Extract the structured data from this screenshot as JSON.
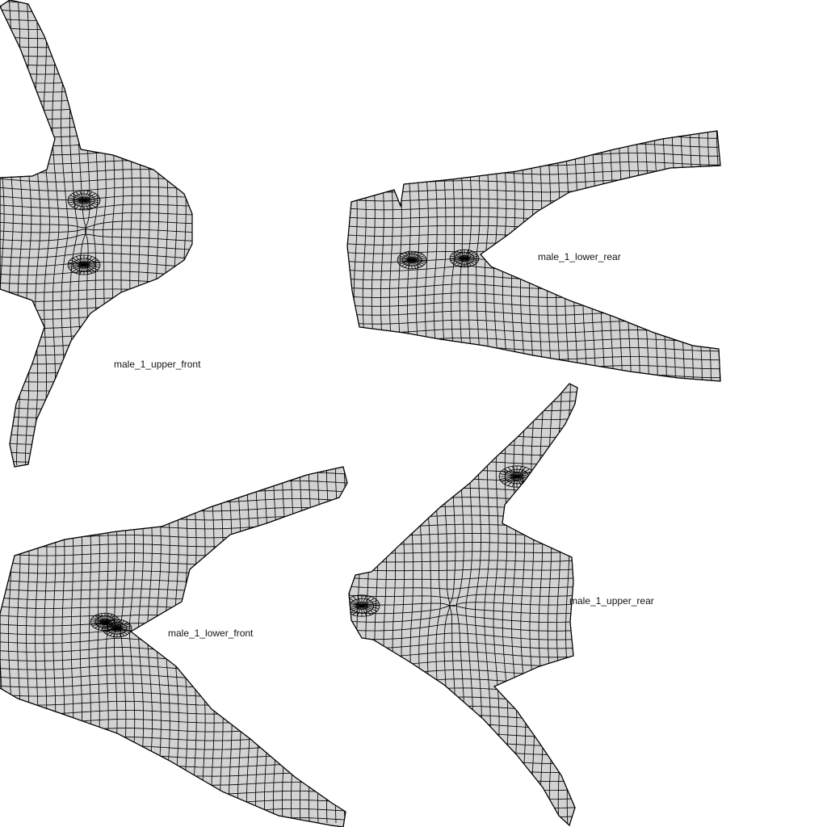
{
  "panels": [
    {
      "id": "upper_front",
      "label": "male_1_upper_front"
    },
    {
      "id": "lower_rear",
      "label": "male_1_lower_rear"
    },
    {
      "id": "lower_front",
      "label": "male_1_lower_front"
    },
    {
      "id": "upper_rear",
      "label": "male_1_upper_rear"
    }
  ],
  "colors": {
    "background": "#ffffff",
    "panel_fill": "#d3d3d3",
    "mesh_stroke": "#000000"
  }
}
